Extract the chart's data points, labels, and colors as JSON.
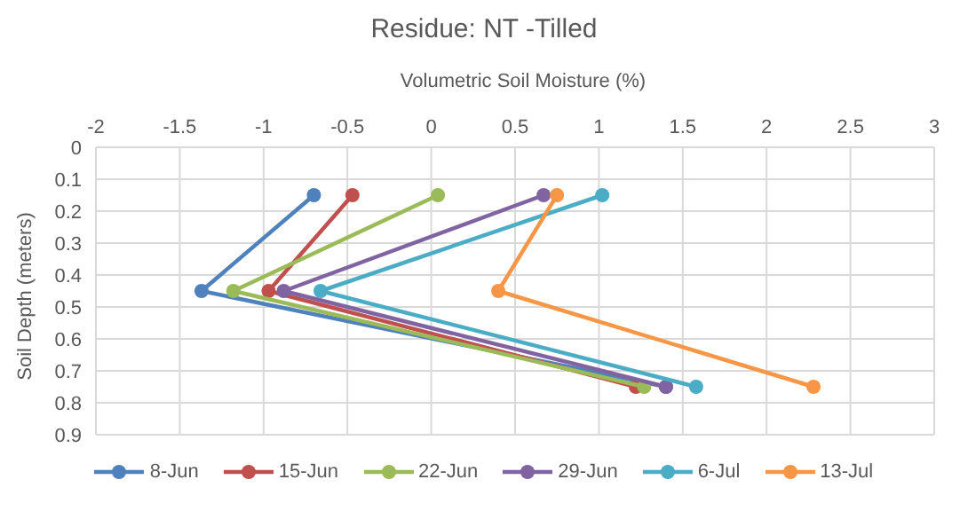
{
  "chart_data": {
    "type": "line",
    "title": "Residue: NT -Tilled",
    "xlabel": "Volumetric Soil Moisture (%)",
    "ylabel": "Soil Depth (meters)",
    "xlim": [
      -2,
      3
    ],
    "xticks": [
      -2,
      -1.5,
      -1,
      -0.5,
      0,
      0.5,
      1,
      1.5,
      2,
      2.5,
      3
    ],
    "ylim": [
      0.9,
      0
    ],
    "yticks": [
      0,
      0.1,
      0.2,
      0.3,
      0.4,
      0.5,
      0.6,
      0.7,
      0.8,
      0.9
    ],
    "grid": true,
    "legend": "bottom",
    "marker": "circle",
    "line_style": "solid",
    "series": [
      {
        "name": "8-Jun",
        "color": "#4f81bd",
        "x": [
          -0.7,
          -1.37,
          1.4
        ],
        "values": [
          0.15,
          0.45,
          0.75
        ]
      },
      {
        "name": "15-Jun",
        "color": "#c0504d",
        "x": [
          -0.47,
          -0.97,
          1.22
        ],
        "values": [
          0.15,
          0.45,
          0.75
        ]
      },
      {
        "name": "22-Jun",
        "color": "#9bbb59",
        "x": [
          0.04,
          -1.18,
          1.27
        ],
        "values": [
          0.15,
          0.45,
          0.75
        ]
      },
      {
        "name": "29-Jun",
        "color": "#8064a2",
        "x": [
          0.67,
          -0.88,
          1.4
        ],
        "values": [
          0.15,
          0.45,
          0.75
        ]
      },
      {
        "name": "6-Jul",
        "color": "#4bacc6",
        "x": [
          1.02,
          -0.66,
          1.58
        ],
        "values": [
          0.15,
          0.45,
          0.75
        ]
      },
      {
        "name": "13-Jul",
        "color": "#f79646",
        "x": [
          0.75,
          0.4,
          2.28
        ],
        "values": [
          0.15,
          0.45,
          0.75
        ]
      }
    ]
  }
}
